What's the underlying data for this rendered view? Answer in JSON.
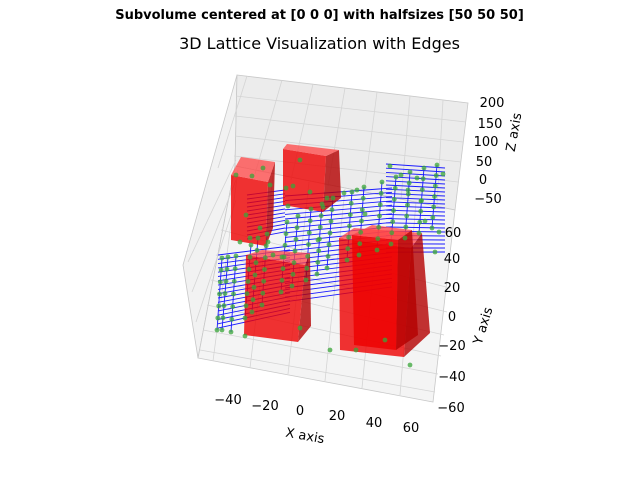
{
  "figure": {
    "suptitle": "Subvolume centered at [0 0 0] with halfsizes [50 50 50]",
    "title": "3D Lattice Visualization with Edges"
  },
  "chart_data": {
    "type": "3d-scatter-lattice",
    "title": "3D Lattice Visualization with Edges",
    "suptitle": "Subvolume centered at [0 0 0] with halfsizes [50 50 50]",
    "xlabel": "X axis",
    "ylabel": "Y axis",
    "zlabel": "Z axis",
    "xticks": [
      "−40",
      "−20",
      "0",
      "20",
      "40",
      "60"
    ],
    "yticks": [
      "60",
      "40",
      "20",
      "0",
      "−20",
      "−40",
      "−60"
    ],
    "zticks": [
      "200",
      "150",
      "100",
      "50",
      "0",
      "−50"
    ],
    "grid": true,
    "colors": {
      "subvolumes": "#ff0000",
      "edges": "#0000ff",
      "nodes": "#2ca02c"
    },
    "series": [
      {
        "kind": "subvolume boxes",
        "color": "red",
        "count": 5
      },
      {
        "kind": "lattice edges",
        "color": "blue"
      },
      {
        "kind": "lattice nodes",
        "color": "green"
      }
    ]
  }
}
